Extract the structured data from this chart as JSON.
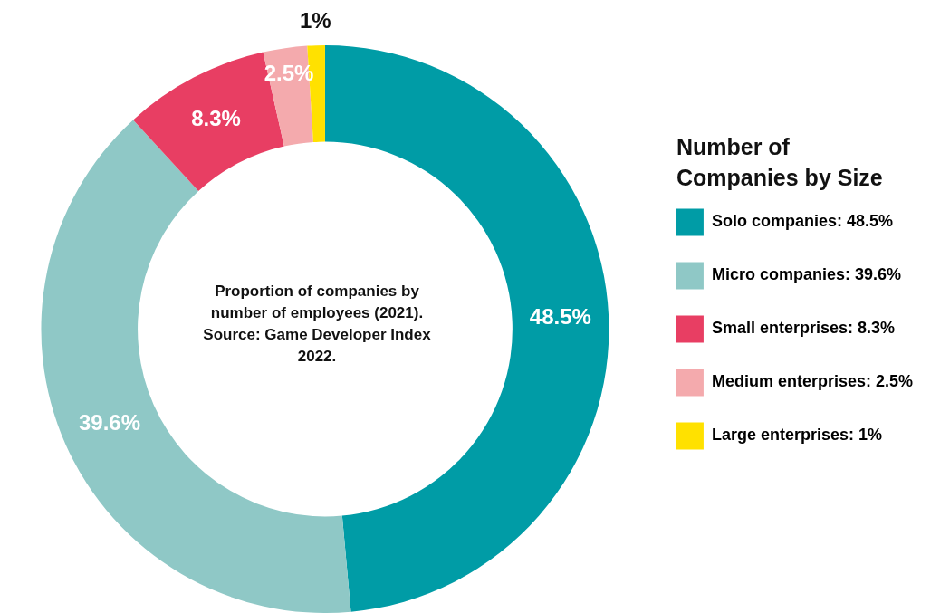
{
  "chart_data": {
    "type": "donut",
    "legend_title": "Number of Companies by Size",
    "categories": [
      "Solo companies",
      "Micro companies",
      "Small enterprises",
      "Medium enterprises",
      "Large enterprises"
    ],
    "values": [
      48.5,
      39.6,
      8.3,
      2.5,
      1
    ],
    "value_labels": [
      "48.5%",
      "39.6%",
      "8.3%",
      "2.5%",
      "1%"
    ],
    "colors": [
      "#009ca6",
      "#8fc8c6",
      "#e83e63",
      "#f4aaad",
      "#ffe100"
    ],
    "legend": "right",
    "annotations": [
      "Proportion of companies by number of employees (2021).",
      "Source: Game Developer Index 2022."
    ]
  }
}
